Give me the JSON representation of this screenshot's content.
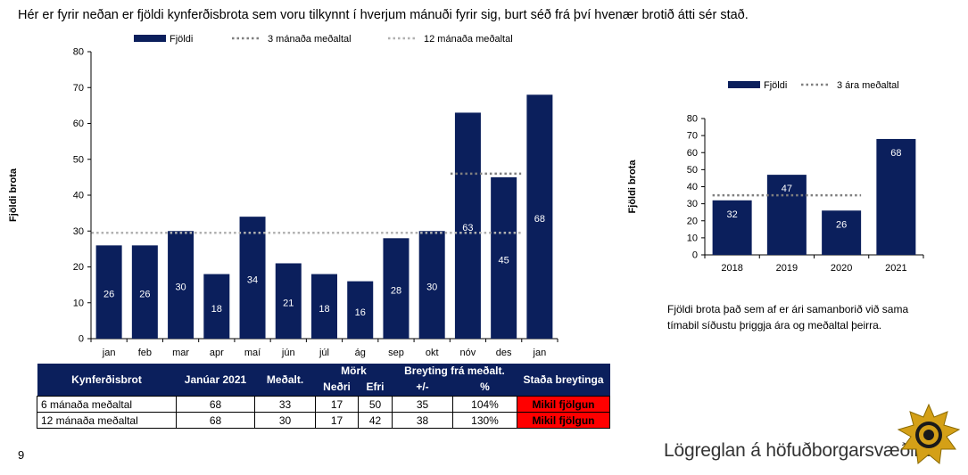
{
  "header_text": "Hér er fyrir neðan er fjöldi kynferðisbrota sem voru tilkynnt í hverjum mánuði fyrir sig, burt séð frá því hvenær brotið átti sér stað.",
  "chart_data": [
    {
      "type": "bar",
      "ylabel": "Fjöldi brota",
      "ylim": [
        0,
        80
      ],
      "yticks": [
        0,
        10,
        20,
        30,
        40,
        50,
        60,
        70,
        80
      ],
      "categories": [
        "jan",
        "feb",
        "mar",
        "apr",
        "maí",
        "jún",
        "júl",
        "ág",
        "sep",
        "okt",
        "nóv",
        "des",
        "jan"
      ],
      "series": [
        {
          "name": "Fjöldi",
          "values": [
            26,
            26,
            30,
            18,
            34,
            21,
            18,
            16,
            28,
            30,
            63,
            45,
            68
          ],
          "color": "#0b1f5c"
        }
      ],
      "reference_lines": [
        {
          "name": "3 mánaða meðaltal",
          "value": 46,
          "from": "nóv",
          "to": "des",
          "style": "dotted",
          "color": "#7f7f7f"
        },
        {
          "name": "12 mánaða meðaltal",
          "value": 29.5,
          "from": "jan",
          "to": "des",
          "style": "dotted",
          "color": "#b0b0b0"
        }
      ],
      "grid": false,
      "legend": "top"
    },
    {
      "type": "bar",
      "ylabel": "Fjöldi brota",
      "ylim": [
        0,
        80
      ],
      "yticks": [
        0,
        10,
        20,
        30,
        40,
        50,
        60,
        70,
        80
      ],
      "categories": [
        "2018",
        "2019",
        "2020",
        "2021"
      ],
      "series": [
        {
          "name": "Fjöldi",
          "values": [
            32,
            47,
            26,
            68
          ],
          "color": "#0b1f5c"
        }
      ],
      "reference_lines": [
        {
          "name": "3 ára meðaltal",
          "value": 35,
          "from": "2018",
          "to": "2020",
          "style": "dotted",
          "color": "#7f7f7f"
        }
      ],
      "grid": false,
      "legend": "top"
    }
  ],
  "side_caption": "Fjöldi brota það sem af er ári samanborið við sama tímabil síðustu þriggja ára og meðaltal þeirra.",
  "table": {
    "headers": {
      "category": "Kynferðisbrot",
      "period": "Janúar 2021",
      "average": "Meðalt.",
      "limits": "Mörk",
      "lower": "Neðri",
      "upper": "Efri",
      "change": "Breyting frá meðalt.",
      "plusminus": "+/-",
      "percent": "%",
      "status": "Staða breytinga"
    },
    "rows": [
      {
        "label": "6 mánaða meðaltal",
        "value": "68",
        "average": "33",
        "lower": "17",
        "upper": "50",
        "change": "35",
        "percent": "104%",
        "status": "Mikil fjölgun"
      },
      {
        "label": "12 mánaða meðaltal",
        "value": "68",
        "average": "30",
        "lower": "17",
        "upper": "42",
        "change": "38",
        "percent": "130%",
        "status": "Mikil fjölgun"
      }
    ]
  },
  "page_number": "9",
  "organization": "Lögreglan á höfuðborgarsvæðinu",
  "colors": {
    "bar": "#0b1f5c",
    "status_alert": "#ff0000",
    "badge_gold": "#d4a017",
    "badge_dark": "#1a1a1a"
  },
  "icons": [
    "police-badge-icon"
  ]
}
